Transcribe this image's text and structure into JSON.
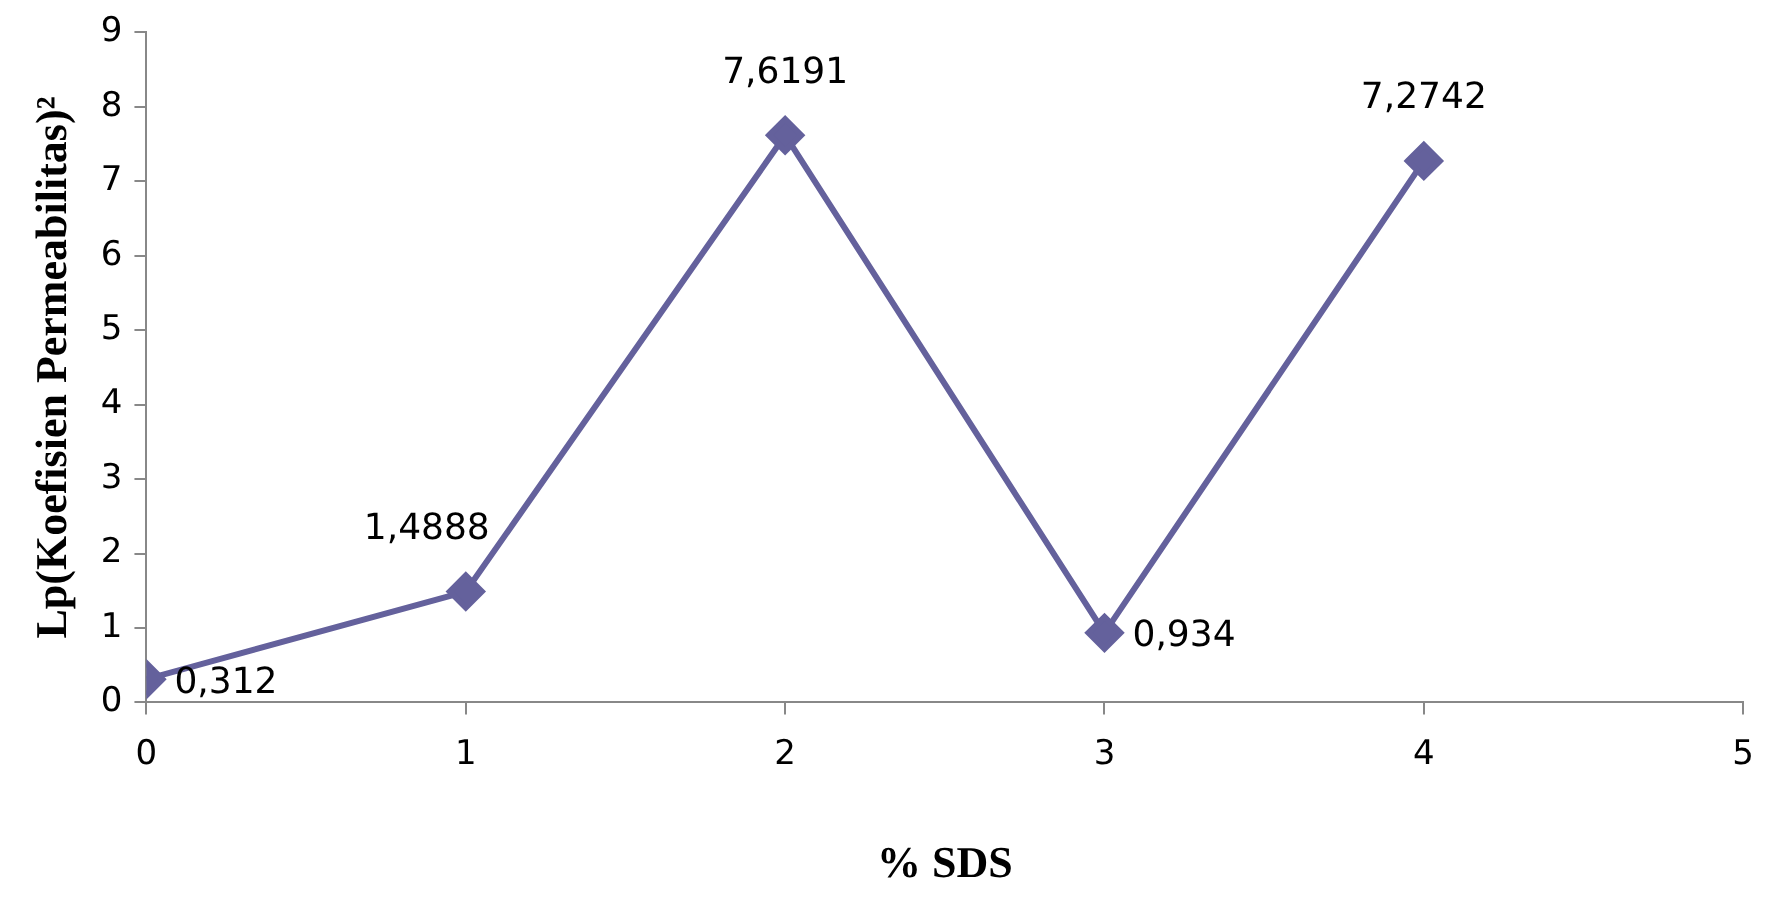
{
  "chart_data": {
    "type": "line",
    "xlabel": "% SDS",
    "ylabel": "Lp(Koefisien Permeabilitas)²",
    "x": [
      0,
      1,
      2,
      3,
      4
    ],
    "series": [
      {
        "color": "#64619c",
        "values": [
          0.312,
          1.4888,
          7.6191,
          0.934,
          7.2742
        ],
        "value_labels": [
          "0,312",
          "1,4888",
          "7,6191",
          "0,934",
          "7,2742"
        ]
      }
    ],
    "xlim": [
      0,
      5
    ],
    "xticks": [
      0,
      1,
      2,
      3,
      4,
      5
    ],
    "ylim": [
      0,
      9
    ],
    "yticks": [
      0,
      1,
      2,
      3,
      4,
      5,
      6,
      7,
      8,
      9
    ],
    "grid": false,
    "legend": false,
    "marker": "diamond",
    "line_style": "solid"
  }
}
